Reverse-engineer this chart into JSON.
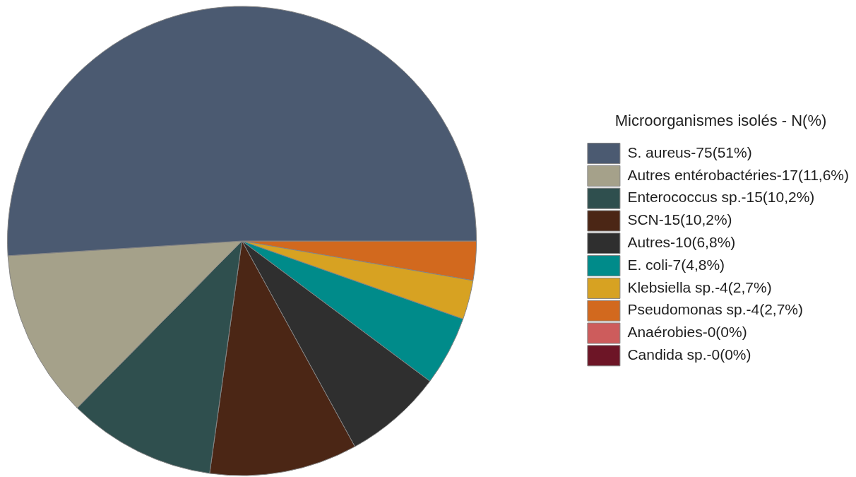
{
  "chart_data": {
    "type": "pie",
    "legend_title": "Microorganismes isolés - N(%)",
    "categories": [
      "S. aureus-75(51%)",
      "Autres entérobactéries-17(11,6%)",
      "Enterococcus sp.-15(10,2%)",
      "SCN-15(10,2%)",
      "Autres-10(6,8%)",
      "E. coli-7(4,8%)",
      "Klebsiella sp.-4(2,7%)",
      "Pseudomonas sp.-4(2,7%)",
      "Anaérobies-0(0%)",
      "Candida sp.-0(0%)"
    ],
    "values": [
      51,
      11.6,
      10.2,
      10.2,
      6.8,
      4.8,
      2.7,
      2.7,
      0,
      0
    ],
    "colors": [
      "#4b5a71",
      "#a5a18a",
      "#2f4f4e",
      "#4b2615",
      "#2f2f2f",
      "#008b8a",
      "#d7a222",
      "#d2691e",
      "#cd5c5c",
      "#6d1526"
    ],
    "legend": "right"
  }
}
